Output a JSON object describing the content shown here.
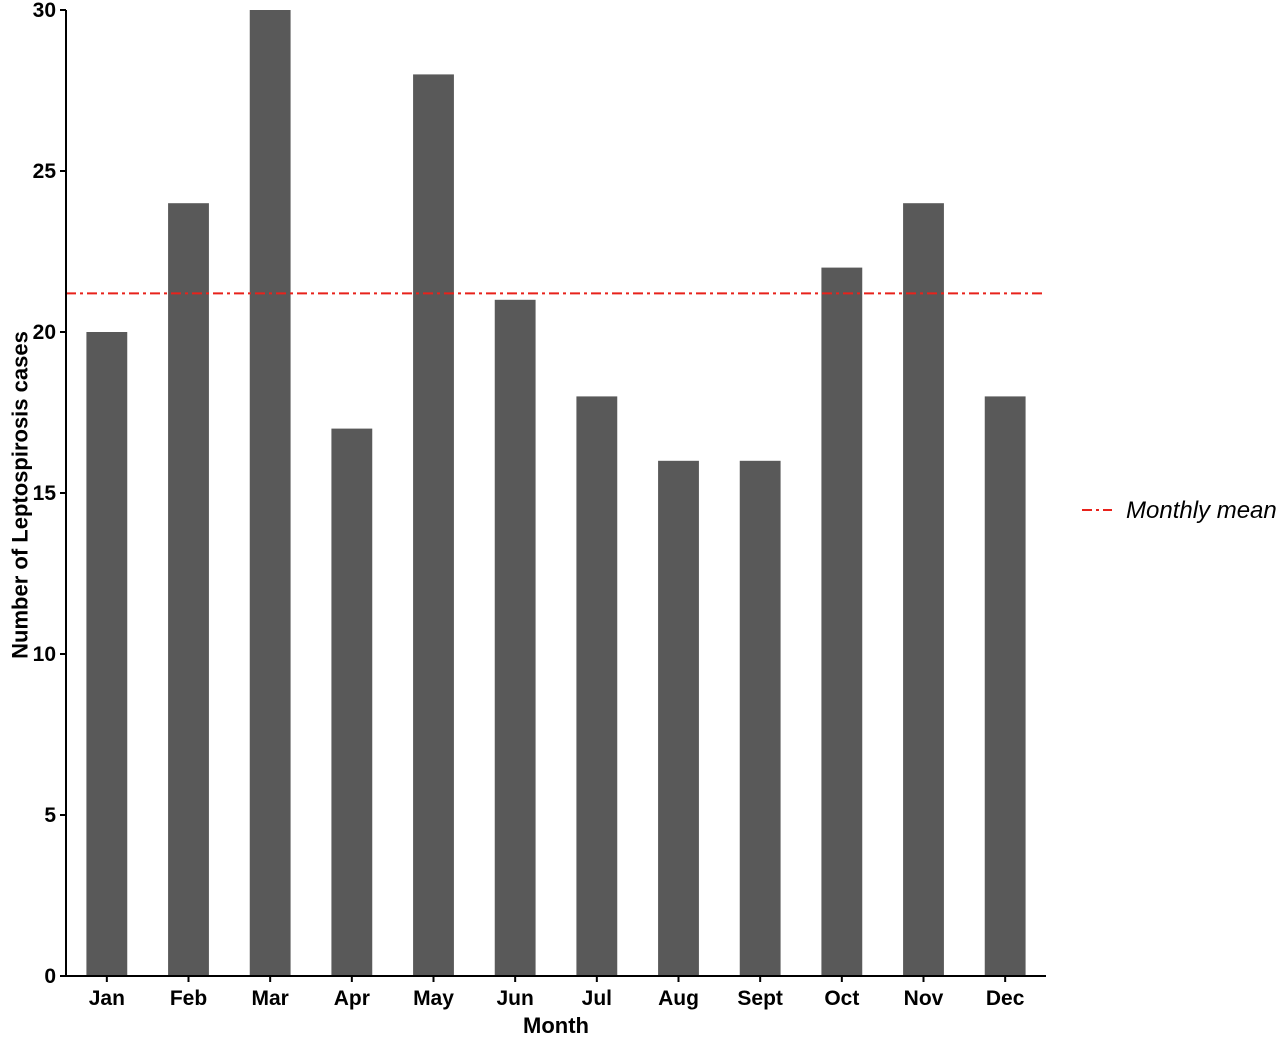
{
  "chart_data": {
    "type": "bar",
    "title": "",
    "xlabel": "Month",
    "ylabel": "Number of Leptospirosis cases",
    "categories": [
      "Jan",
      "Feb",
      "Mar",
      "Apr",
      "May",
      "Jun",
      "Jul",
      "Aug",
      "Sept",
      "Oct",
      "Nov",
      "Dec"
    ],
    "values": [
      20,
      24,
      30,
      17,
      28,
      21,
      18,
      16,
      16,
      22,
      24,
      18
    ],
    "ylim": [
      0,
      30
    ],
    "yticks": [
      0,
      5,
      10,
      15,
      20,
      25,
      30
    ],
    "grid": false,
    "bar_color": "#595959",
    "reference_line": {
      "label": "Monthly mean",
      "value": 21.2,
      "color": "#e8221b",
      "style": "dash-dot"
    },
    "legend": {
      "placement": "right",
      "entries": [
        "Monthly mean"
      ]
    }
  }
}
